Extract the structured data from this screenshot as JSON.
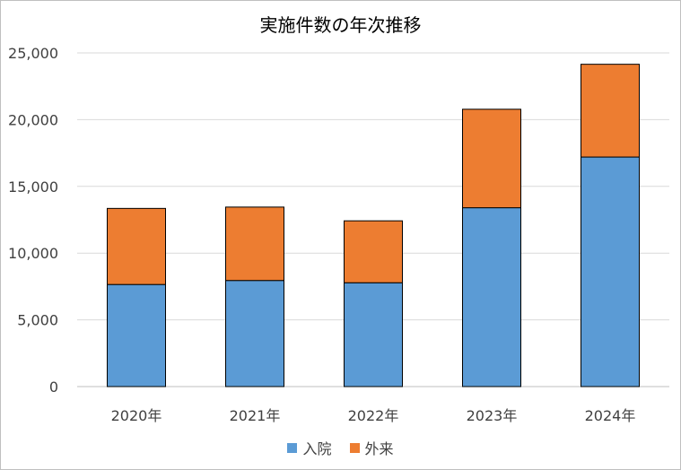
{
  "chart_data": {
    "type": "bar",
    "stacked": true,
    "title": "実施件数の年次推移",
    "xlabel": "",
    "ylabel": "",
    "categories": [
      "2020年",
      "2021年",
      "2022年",
      "2023年",
      "2024年"
    ],
    "series": [
      {
        "name": "入院",
        "color": "#5b9bd5",
        "values": [
          7650,
          7950,
          7780,
          13400,
          17200
        ]
      },
      {
        "name": "外来",
        "color": "#ed7d31",
        "values": [
          5700,
          5500,
          4640,
          7380,
          6950
        ]
      }
    ],
    "ylim": [
      0,
      25000
    ],
    "yticks": [
      0,
      5000,
      10000,
      15000,
      20000,
      25000
    ],
    "ytick_labels": [
      "0",
      "5,000",
      "10,000",
      "15,000",
      "20,000",
      "25,000"
    ],
    "grid": true,
    "legend_position": "bottom"
  }
}
